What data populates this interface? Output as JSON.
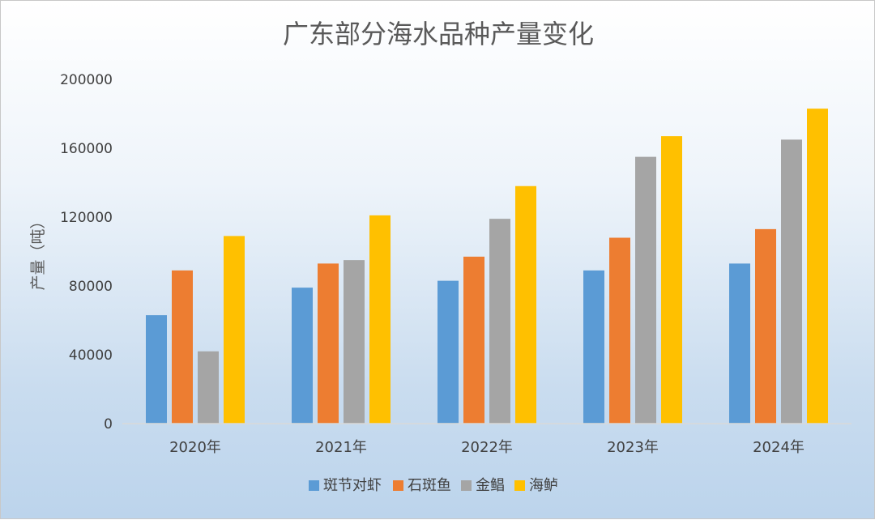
{
  "chart_data": {
    "type": "bar",
    "title": "广东部分海水品种产量变化",
    "ylabel": "产量（吨）",
    "xlabel": "",
    "ylim": [
      0,
      200000
    ],
    "yticks": [
      "0",
      "40000",
      "80000",
      "120000",
      "160000",
      "200000"
    ],
    "ytick_values": [
      0,
      40000,
      80000,
      120000,
      160000,
      200000
    ],
    "categories": [
      "2020年",
      "2021年",
      "2022年",
      "2023年",
      "2024年"
    ],
    "series": [
      {
        "name": "斑节对虾",
        "color": "#5b9bd5",
        "values": [
          63000,
          79000,
          83000,
          89000,
          93000
        ]
      },
      {
        "name": "石斑鱼",
        "color": "#ed7d31",
        "values": [
          89000,
          93000,
          97000,
          108000,
          113000
        ]
      },
      {
        "name": "金鲳",
        "color": "#a5a5a5",
        "values": [
          42000,
          95000,
          119000,
          155000,
          165000
        ]
      },
      {
        "name": "海鲈",
        "color": "#ffc000",
        "values": [
          109000,
          121000,
          138000,
          167000,
          183000
        ]
      }
    ],
    "legend": "bottom",
    "grid": false
  }
}
